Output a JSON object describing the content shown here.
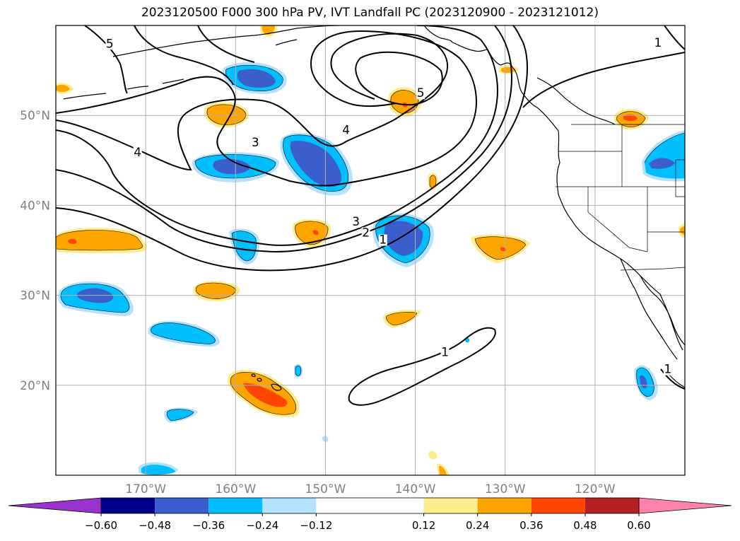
{
  "title": "2023120500 F000 300 hPa PV, IVT Landfall PC (2023120900 - 2023121012)",
  "map": {
    "lat_labels": [
      "50°N",
      "40°N",
      "30°N",
      "20°N"
    ],
    "lon_labels": [
      "170°W",
      "160°W",
      "150°W",
      "140°W",
      "130°W",
      "120°W"
    ],
    "grid_lat_values": [
      50,
      40,
      30,
      20
    ],
    "grid_lon_values": [
      -170,
      -160,
      -150,
      -140,
      -130,
      -120
    ],
    "extent": {
      "lon_min": -180,
      "lon_max": -110,
      "lat_min": 10,
      "lat_max": 60
    },
    "pv_contour_labels": [
      {
        "text": "5",
        "lon": -174,
        "lat": 57.7
      },
      {
        "text": "1",
        "lon": -113,
        "lat": 57.8
      },
      {
        "text": "5",
        "lon": -139.4,
        "lat": 52.2
      },
      {
        "text": "4",
        "lon": -147.7,
        "lat": 48.1
      },
      {
        "text": "4",
        "lon": -170.9,
        "lat": 45.6
      },
      {
        "text": "3",
        "lon": -157.8,
        "lat": 46.7
      },
      {
        "text": "3",
        "lon": -146.6,
        "lat": 37.9
      },
      {
        "text": "2",
        "lon": -145.5,
        "lat": 36.7
      },
      {
        "text": "1",
        "lon": -143.6,
        "lat": 35.9
      },
      {
        "text": "1",
        "lon": -136.7,
        "lat": 23.4
      },
      {
        "text": "1",
        "lon": -111.9,
        "lat": 21.5
      }
    ]
  },
  "colorbar": {
    "tick_labels": [
      "−0.60",
      "−0.48",
      "−0.36",
      "−0.24",
      "−0.12",
      "0.12",
      "0.24",
      "0.36",
      "0.48",
      "0.60"
    ],
    "levels": [
      -0.6,
      -0.48,
      -0.36,
      -0.24,
      -0.12,
      0.12,
      0.24,
      0.36,
      0.48,
      0.6
    ],
    "colors": [
      "#9a32cd",
      "#00008b",
      "#3a5fcd",
      "#00bfff",
      "#b2e2ff",
      "#ffffff",
      "#ffec8b",
      "#ffa500",
      "#ff4500",
      "#b22222",
      "#ff82ab"
    ],
    "extend": "both"
  },
  "colors": {
    "deep_blue": "#3a5fcd",
    "sky_blue": "#00bfff",
    "light_blue": "#b2e2ff",
    "light_yellow": "#ffec8b",
    "orange": "#ffa500",
    "red_orange": "#ff4500",
    "contour": "#000000",
    "grid": "#b0b0b0",
    "axis_labels": "#808080"
  }
}
